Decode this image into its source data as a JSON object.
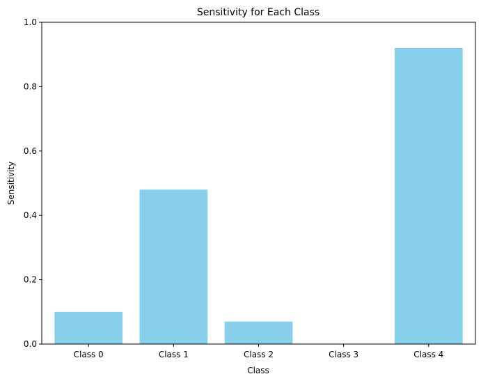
{
  "chart_data": {
    "type": "bar",
    "title": "Sensitivity for Each Class",
    "xlabel": "Class",
    "ylabel": "Sensitivity",
    "categories": [
      "Class 0",
      "Class 1",
      "Class 2",
      "Class 3",
      "Class 4"
    ],
    "values": [
      0.1,
      0.48,
      0.07,
      0.0,
      0.92
    ],
    "ylim": [
      0,
      1.0
    ],
    "yticks": [
      0.0,
      0.2,
      0.4,
      0.6,
      0.8,
      1.0
    ],
    "ytick_labels": [
      "0.0",
      "0.2",
      "0.4",
      "0.6",
      "0.8",
      "1.0"
    ],
    "bar_color": "#87ceeb",
    "grid": false,
    "legend": "none"
  }
}
